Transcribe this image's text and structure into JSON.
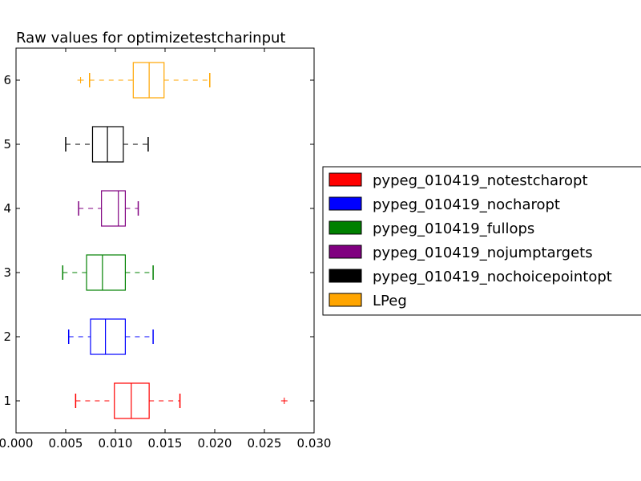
{
  "chart_data": {
    "type": "boxplot",
    "orientation": "horizontal",
    "title": "Raw values for optimizetestcharinput",
    "xlabel": "",
    "ylabel": "",
    "xlim": [
      0.0,
      0.03
    ],
    "ylim": [
      0.5,
      6.5
    ],
    "x_ticks": [
      "0.000",
      "0.005",
      "0.010",
      "0.015",
      "0.020",
      "0.025",
      "0.030"
    ],
    "x_tick_values": [
      0.0,
      0.005,
      0.01,
      0.015,
      0.02,
      0.025,
      0.03
    ],
    "y_ticks": [
      "1",
      "2",
      "3",
      "4",
      "5",
      "6"
    ],
    "y_tick_values": [
      1,
      2,
      3,
      4,
      5,
      6
    ],
    "grid": false,
    "legend_position": "outside-right",
    "series": [
      {
        "name": "pypeg_010419_notestcharopt",
        "color": "#ff0000",
        "position": 1,
        "whisker_low": 0.006,
        "q1": 0.0099,
        "median": 0.0116,
        "q3": 0.0134,
        "whisker_high": 0.0165,
        "outliers": [
          0.027
        ]
      },
      {
        "name": "pypeg_010419_nocharopt",
        "color": "#0000ff",
        "position": 2,
        "whisker_low": 0.0053,
        "q1": 0.0075,
        "median": 0.009,
        "q3": 0.011,
        "whisker_high": 0.0138,
        "outliers": []
      },
      {
        "name": "pypeg_010419_fullops",
        "color": "#008000",
        "position": 3,
        "whisker_low": 0.0047,
        "q1": 0.0071,
        "median": 0.0087,
        "q3": 0.011,
        "whisker_high": 0.0138,
        "outliers": []
      },
      {
        "name": "pypeg_010419_nojumptargets",
        "color": "#800080",
        "position": 4,
        "whisker_low": 0.0063,
        "q1": 0.0086,
        "median": 0.0103,
        "q3": 0.011,
        "whisker_high": 0.0123,
        "outliers": []
      },
      {
        "name": "pypeg_010419_nochoicepointopt",
        "color": "#000000",
        "position": 5,
        "whisker_low": 0.005,
        "q1": 0.0077,
        "median": 0.0092,
        "q3": 0.0108,
        "whisker_high": 0.0133,
        "outliers": []
      },
      {
        "name": "LPeg",
        "color": "#ffa500",
        "position": 6,
        "whisker_low": 0.0074,
        "q1": 0.0118,
        "median": 0.0134,
        "q3": 0.0149,
        "whisker_high": 0.0195,
        "outliers": [
          0.0065
        ]
      }
    ]
  }
}
